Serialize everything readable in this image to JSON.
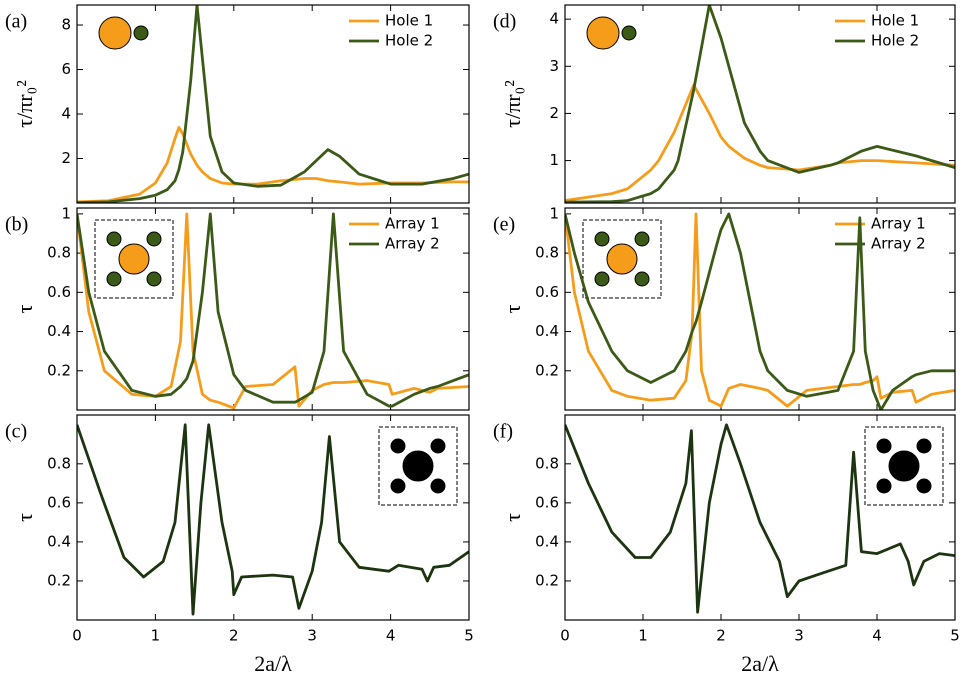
{
  "chart_data": [
    {
      "type": "line",
      "panel_label": "(a)",
      "y_label": "τ/πr₀²",
      "x": [
        0,
        0.4,
        0.8,
        1.0,
        1.15,
        1.25,
        1.3,
        1.35,
        1.45,
        1.53,
        1.6,
        1.7,
        1.85,
        2.0,
        2.3,
        2.6,
        2.9,
        3.05,
        3.2,
        3.35,
        3.6,
        4.0,
        4.4,
        4.8,
        5
      ],
      "series": [
        {
          "name": "Hole 1",
          "color": "#f59d1b",
          "values": [
            0.05,
            0.1,
            0.4,
            0.9,
            1.8,
            2.9,
            3.4,
            3.1,
            2.2,
            1.7,
            1.4,
            1.1,
            0.9,
            0.85,
            0.85,
            1.0,
            1.1,
            1.1,
            1.0,
            0.95,
            0.85,
            0.9,
            0.9,
            0.95,
            0.95
          ]
        },
        {
          "name": "Hole 2",
          "color": "#3b5a17",
          "values": [
            0.02,
            0.05,
            0.2,
            0.35,
            0.6,
            1.0,
            1.5,
            2.3,
            5.5,
            8.9,
            6.5,
            3.0,
            1.4,
            0.9,
            0.75,
            0.8,
            1.4,
            1.9,
            2.4,
            2.1,
            1.3,
            0.85,
            0.85,
            1.1,
            1.3
          ]
        }
      ],
      "xlim": [
        0,
        5
      ],
      "xticks": [
        0,
        1,
        2,
        3,
        4,
        5
      ],
      "ylim": [
        0,
        8.9
      ],
      "yticks": [
        2,
        4,
        6,
        8
      ]
    },
    {
      "type": "line",
      "panel_label": "(b)",
      "y_label": "τ",
      "x": [
        0,
        0.15,
        0.35,
        0.7,
        1.0,
        1.2,
        1.32,
        1.4,
        1.48,
        1.6,
        1.7,
        1.8,
        2.0,
        2.15,
        2.5,
        2.78,
        2.83,
        3.0,
        3.15,
        3.27,
        3.4,
        3.7,
        3.98,
        4.02,
        4.3,
        4.5,
        4.6,
        5
      ],
      "series": [
        {
          "name": "Array 1",
          "color": "#f59d1b",
          "values": [
            1,
            0.5,
            0.2,
            0.08,
            0.07,
            0.12,
            0.35,
            1,
            0.3,
            0.08,
            0.05,
            0.04,
            0.01,
            0.12,
            0.13,
            0.22,
            0.02,
            0.1,
            0.13,
            0.14,
            0.14,
            0.15,
            0.13,
            0.08,
            0.11,
            0.09,
            0.11,
            0.12
          ]
        },
        {
          "name": "Array 2",
          "color": "#3b5a17",
          "values": [
            1,
            0.6,
            0.3,
            0.1,
            0.07,
            0.08,
            0.12,
            0.16,
            0.25,
            0.6,
            1,
            0.5,
            0.18,
            0.1,
            0.04,
            0.04,
            0.05,
            0.09,
            0.3,
            1,
            0.3,
            0.08,
            0.02,
            0.02,
            0.08,
            0.11,
            0.12,
            0.18
          ]
        }
      ],
      "xlim": [
        0,
        5
      ],
      "xticks": [
        0,
        1,
        2,
        3,
        4,
        5
      ],
      "ylim": [
        0,
        1.03
      ],
      "yticks": [
        0.2,
        0.4,
        0.6,
        0.8,
        1
      ]
    },
    {
      "type": "line",
      "panel_label": "(c)",
      "y_label": "τ",
      "x_label": "2a/λ",
      "x": [
        0,
        0.3,
        0.6,
        0.85,
        1.1,
        1.25,
        1.38,
        1.48,
        1.58,
        1.68,
        1.85,
        1.98,
        2.0,
        2.1,
        2.5,
        2.75,
        2.83,
        3.0,
        3.12,
        3.22,
        3.35,
        3.6,
        3.98,
        4.1,
        4.4,
        4.47,
        4.55,
        4.75,
        5
      ],
      "series": [
        {
          "color": "#1c3510",
          "values": [
            1,
            0.65,
            0.32,
            0.22,
            0.3,
            0.5,
            1,
            0.03,
            0.6,
            1,
            0.5,
            0.25,
            0.13,
            0.22,
            0.23,
            0.22,
            0.06,
            0.25,
            0.5,
            0.94,
            0.4,
            0.27,
            0.25,
            0.28,
            0.26,
            0.2,
            0.27,
            0.28,
            0.35
          ]
        }
      ],
      "xlim": [
        0,
        5
      ],
      "xticks": [
        0,
        1,
        2,
        3,
        4,
        5
      ],
      "ylim": [
        0,
        1.05
      ],
      "yticks": [
        0.2,
        0.4,
        0.6,
        0.8
      ]
    },
    {
      "type": "line",
      "panel_label": "(d)",
      "y_label": "τ/πr₀²",
      "x": [
        0,
        0.6,
        0.8,
        1.1,
        1.2,
        1.4,
        1.45,
        1.65,
        1.85,
        2.0,
        2.1,
        2.3,
        2.5,
        2.6,
        3.0,
        3.4,
        3.5,
        3.8,
        4.0,
        4.5,
        5
      ],
      "series": [
        {
          "name": "Hole 1",
          "color": "#f59d1b",
          "values": [
            0.15,
            0.3,
            0.4,
            0.8,
            1.0,
            1.6,
            1.8,
            2.6,
            2.0,
            1.5,
            1.3,
            1.05,
            0.9,
            0.85,
            0.8,
            0.9,
            0.95,
            1.0,
            1.0,
            0.95,
            0.9
          ]
        },
        {
          "name": "Hole 2",
          "color": "#3b5a17",
          "values": [
            0.12,
            0.13,
            0.15,
            0.3,
            0.4,
            0.8,
            1.0,
            2.5,
            4.3,
            3.6,
            3.0,
            1.8,
            1.2,
            1.0,
            0.75,
            0.9,
            0.95,
            1.2,
            1.3,
            1.1,
            0.85
          ]
        }
      ],
      "xlim": [
        0,
        5
      ],
      "xticks": [
        0,
        1,
        2,
        3,
        4,
        5
      ],
      "ylim": [
        0.1,
        4.3
      ],
      "yticks": [
        1,
        2,
        3,
        4
      ]
    },
    {
      "type": "line",
      "panel_label": "(e)",
      "y_label": "τ",
      "x": [
        0,
        0.12,
        0.3,
        0.6,
        0.8,
        1.1,
        1.4,
        1.55,
        1.63,
        1.68,
        1.75,
        1.85,
        1.95,
        2.0,
        2.1,
        2.25,
        2.5,
        2.6,
        2.85,
        3.1,
        3.5,
        3.7,
        3.78,
        3.85,
        3.95,
        4.0,
        4.05,
        4.2,
        4.45,
        4.5,
        4.7,
        5
      ],
      "series": [
        {
          "name": "Array 1",
          "color": "#f59d1b",
          "values": [
            1,
            0.6,
            0.3,
            0.1,
            0.07,
            0.05,
            0.06,
            0.15,
            0.4,
            1,
            0.2,
            0.05,
            0.03,
            0.02,
            0.11,
            0.13,
            0.11,
            0.1,
            0.02,
            0.1,
            0.12,
            0.13,
            0.13,
            0.14,
            0.15,
            0.17,
            0.06,
            0.09,
            0.1,
            0.04,
            0.08,
            0.1
          ]
        },
        {
          "name": "Array 2",
          "color": "#3b5a17",
          "values": [
            1,
            0.8,
            0.55,
            0.3,
            0.2,
            0.14,
            0.2,
            0.3,
            0.4,
            0.45,
            0.55,
            0.7,
            0.85,
            0.92,
            1,
            0.8,
            0.3,
            0.2,
            0.1,
            0.07,
            0.1,
            0.3,
            0.98,
            0.3,
            0.1,
            0.05,
            0.0,
            0.1,
            0.17,
            0.18,
            0.2,
            0.2
          ]
        }
      ],
      "xlim": [
        0,
        5
      ],
      "xticks": [
        0,
        1,
        2,
        3,
        4,
        5
      ],
      "ylim": [
        0,
        1.03
      ],
      "yticks": [
        0.2,
        0.4,
        0.6,
        0.8,
        1
      ]
    },
    {
      "type": "line",
      "panel_label": "(f)",
      "y_label": "τ",
      "x_label": "2a/λ",
      "x": [
        0,
        0.3,
        0.6,
        0.9,
        1.1,
        1.35,
        1.55,
        1.62,
        1.7,
        1.85,
        2.0,
        2.07,
        2.25,
        2.5,
        2.75,
        2.85,
        3.0,
        3.3,
        3.6,
        3.7,
        3.8,
        4.0,
        4.3,
        4.4,
        4.47,
        4.6,
        4.8,
        5
      ],
      "series": [
        {
          "color": "#1c3510",
          "values": [
            1,
            0.7,
            0.45,
            0.32,
            0.32,
            0.45,
            0.7,
            0.97,
            0.04,
            0.6,
            0.9,
            1,
            0.8,
            0.5,
            0.3,
            0.12,
            0.2,
            0.24,
            0.28,
            0.86,
            0.35,
            0.34,
            0.39,
            0.3,
            0.18,
            0.3,
            0.34,
            0.33
          ]
        }
      ],
      "xlim": [
        0,
        5
      ],
      "xticks": [
        0,
        1,
        2,
        3,
        4,
        5
      ],
      "ylim": [
        0,
        1.05
      ],
      "yticks": [
        0.2,
        0.4,
        0.6,
        0.8
      ]
    }
  ]
}
